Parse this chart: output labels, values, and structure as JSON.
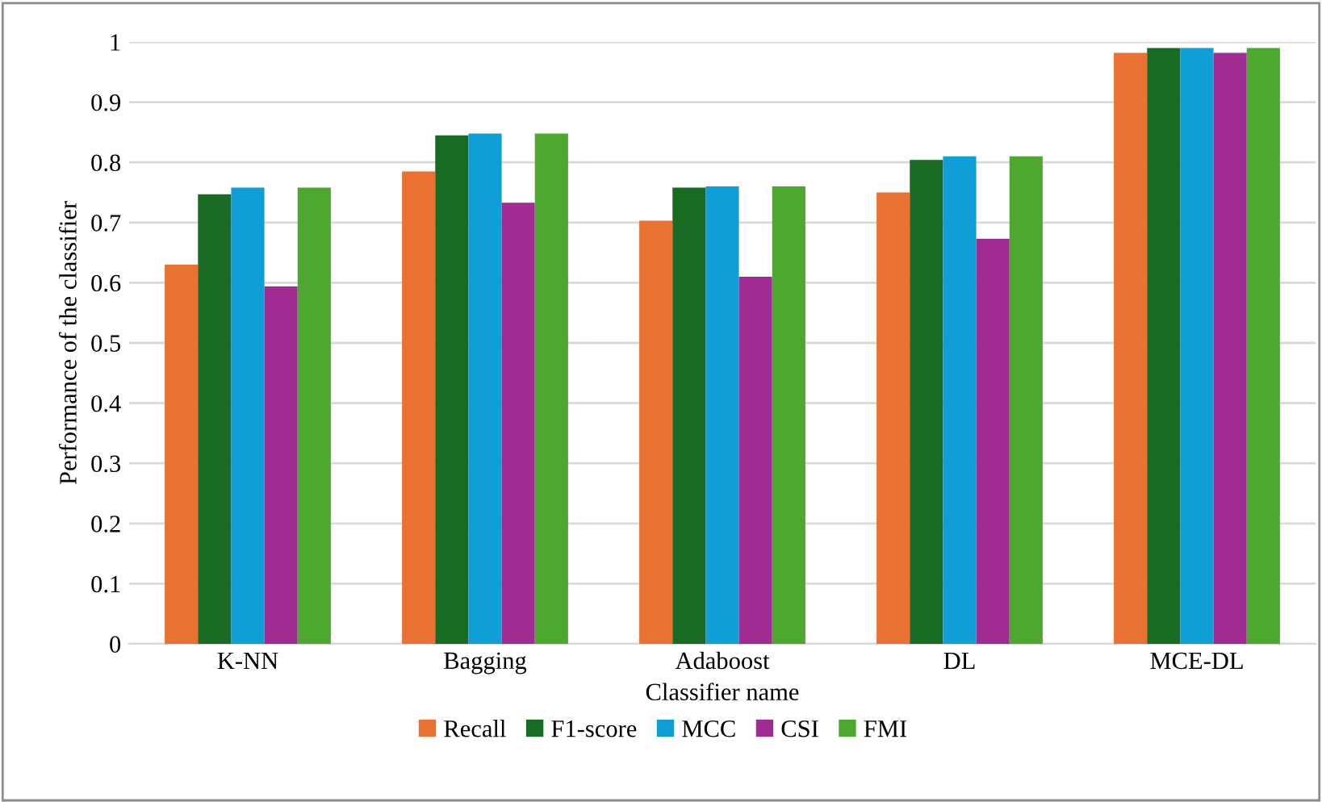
{
  "chart_data": {
    "type": "bar",
    "xlabel": "Classifier name",
    "ylabel": "Performance of the classifier",
    "categories": [
      "K-NN",
      "Bagging",
      "Adaboost",
      "DL",
      "MCE-DL"
    ],
    "series": [
      {
        "name": "Recall",
        "color": "#e97132",
        "values": [
          0.63,
          0.785,
          0.703,
          0.75,
          0.982
        ]
      },
      {
        "name": "F1-score",
        "color": "#196b24",
        "values": [
          0.747,
          0.845,
          0.758,
          0.804,
          0.99
        ]
      },
      {
        "name": "MCC",
        "color": "#0f9ed5",
        "values": [
          0.758,
          0.848,
          0.76,
          0.81,
          0.99
        ]
      },
      {
        "name": "CSI",
        "color": "#a02b93",
        "values": [
          0.594,
          0.733,
          0.61,
          0.673,
          0.982
        ]
      },
      {
        "name": "FMI",
        "color": "#4ea72e",
        "values": [
          0.758,
          0.848,
          0.76,
          0.81,
          0.99
        ]
      }
    ],
    "ylim": [
      0,
      1
    ],
    "yticks": [
      0,
      0.1,
      0.2,
      0.3,
      0.4,
      0.5,
      0.6,
      0.7,
      0.8,
      0.9,
      1
    ],
    "grid": "y",
    "legend": "bottom"
  }
}
